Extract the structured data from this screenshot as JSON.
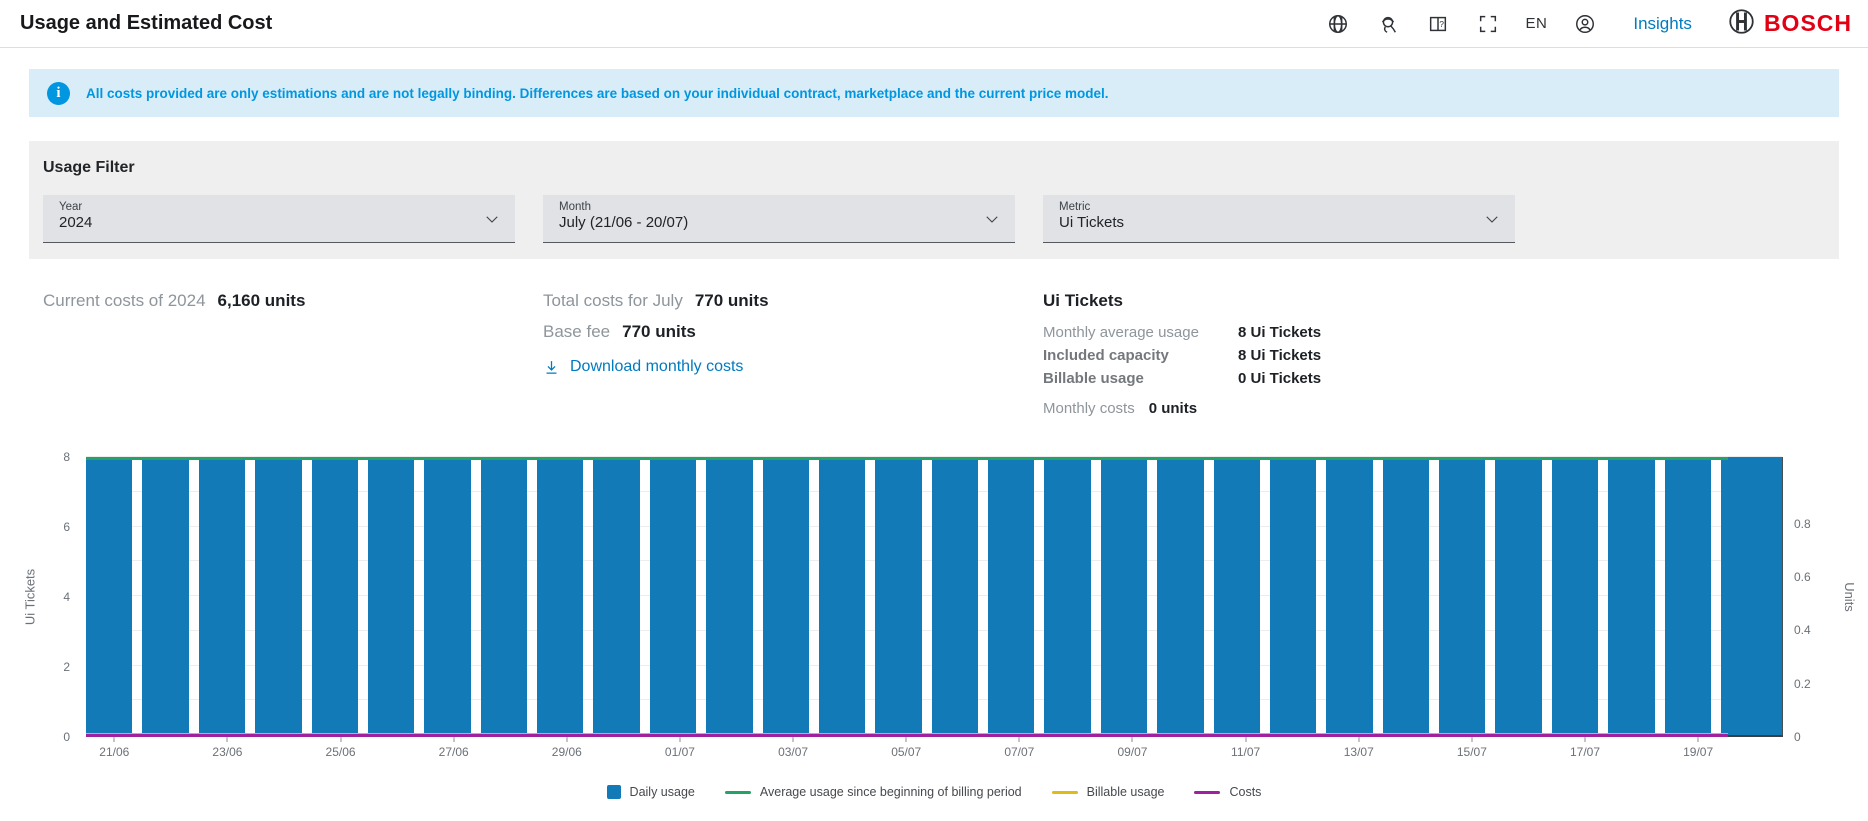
{
  "header": {
    "title": "Usage and Estimated Cost",
    "language": "EN",
    "insights_label": "Insights",
    "brand": "BOSCH",
    "brand_color": "#e20015",
    "icons": [
      "globe-icon",
      "support-icon",
      "manual-help-icon",
      "fullscreen-icon",
      "user-icon"
    ]
  },
  "banner": {
    "text": "All costs provided are only estimations and are not legally binding. Differences are based on your individual contract, marketplace and the current price model.",
    "color": "#0096e0",
    "background": "#d9edf8"
  },
  "filter": {
    "title": "Usage Filter",
    "dropdowns": [
      {
        "label": "Year",
        "value": "2024"
      },
      {
        "label": "Month",
        "value": "July (21/06 - 20/07)"
      },
      {
        "label": "Metric",
        "value": "Ui Tickets"
      }
    ]
  },
  "summary": {
    "current_costs_label": "Current costs of 2024",
    "current_costs_value": "6,160 units",
    "total_costs_label": "Total costs for July",
    "total_costs_value": "770 units",
    "base_fee_label": "Base fee",
    "base_fee_value": "770 units",
    "download_label": "Download monthly costs"
  },
  "metric_panel": {
    "title": "Ui Tickets",
    "rows": [
      {
        "label": "Monthly average usage",
        "value": "8 Ui Tickets",
        "label_bold": false
      },
      {
        "label": "Included capacity",
        "value": "8 Ui Tickets",
        "label_bold": true
      },
      {
        "label": "Billable usage",
        "value": "0 Ui Tickets",
        "label_bold": true
      }
    ],
    "monthly_costs_label": "Monthly costs",
    "monthly_costs_value": "0 units"
  },
  "chart_data": {
    "type": "bar",
    "categories": [
      "21/06",
      "22/06",
      "23/06",
      "24/06",
      "25/06",
      "26/06",
      "27/06",
      "28/06",
      "29/06",
      "30/06",
      "01/07",
      "02/07",
      "03/07",
      "04/07",
      "05/07",
      "06/07",
      "07/07",
      "08/07",
      "09/07",
      "10/07",
      "11/07",
      "12/07",
      "13/07",
      "14/07",
      "15/07",
      "16/07",
      "17/07",
      "18/07",
      "19/07",
      "20/07"
    ],
    "x_tick_labels": [
      "21/06",
      "23/06",
      "25/06",
      "27/06",
      "29/06",
      "01/07",
      "03/07",
      "05/07",
      "07/07",
      "09/07",
      "11/07",
      "13/07",
      "15/07",
      "17/07",
      "19/07"
    ],
    "series": [
      {
        "name": "Daily usage",
        "type": "bar",
        "color": "#137ab8",
        "values": [
          8,
          8,
          8,
          8,
          8,
          8,
          8,
          8,
          8,
          8,
          8,
          8,
          8,
          8,
          8,
          8,
          8,
          8,
          8,
          8,
          8,
          8,
          8,
          8,
          8,
          8,
          8,
          8,
          8,
          8
        ]
      },
      {
        "name": "Average usage since beginning of billing period",
        "type": "line",
        "color": "#26a269",
        "values": [
          8,
          8,
          8,
          8,
          8,
          8,
          8,
          8,
          8,
          8,
          8,
          8,
          8,
          8,
          8,
          8,
          8,
          8,
          8,
          8,
          8,
          8,
          8,
          8,
          8,
          8,
          8,
          8,
          8,
          8
        ]
      },
      {
        "name": "Billable usage",
        "type": "line",
        "color": "#e0ba16",
        "values": [
          0,
          0,
          0,
          0,
          0,
          0,
          0,
          0,
          0,
          0,
          0,
          0,
          0,
          0,
          0,
          0,
          0,
          0,
          0,
          0,
          0,
          0,
          0,
          0,
          0,
          0,
          0,
          0,
          0,
          0
        ]
      },
      {
        "name": "Costs",
        "type": "line",
        "color": "#a0219e",
        "values": [
          0,
          0,
          0,
          0,
          0,
          0,
          0,
          0,
          0,
          0,
          0,
          0,
          0,
          0,
          0,
          0,
          0,
          0,
          0,
          0,
          0,
          0,
          0,
          0,
          0,
          0,
          0,
          0,
          0,
          0
        ]
      }
    ],
    "ylabel_left": "Ui Tickets",
    "ylabel_right": "Units",
    "ylim_left": [
      0,
      8
    ],
    "ylim_right": [
      0,
      1.05
    ],
    "left_ticks": [
      0,
      2,
      4,
      6,
      8
    ],
    "right_ticks": [
      0,
      0.2,
      0.4,
      0.6,
      0.8
    ],
    "grid": true,
    "legend_position": "bottom"
  }
}
